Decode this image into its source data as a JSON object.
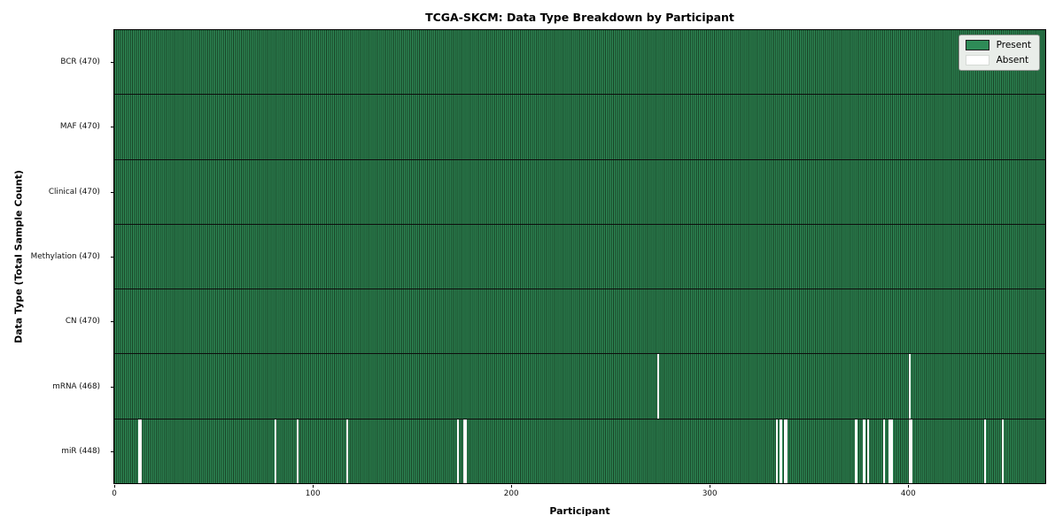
{
  "title": "TCGA-SKCM: Data Type Breakdown by Participant",
  "xlabel": "Participant",
  "ylabel": "Data Type (Total Sample Count)",
  "legend": {
    "present_label": "Present",
    "absent_label": "Absent"
  },
  "colors": {
    "present": "#2e8b57",
    "absent": "#ffffff",
    "bar_edge": "#16381f",
    "row_divider": "#0d0d0d",
    "legend_bg": "#e9ede9",
    "legend_border": "#8f948f"
  },
  "chart_data": {
    "type": "heatmap",
    "title": "TCGA-SKCM: Data Type Breakdown by Participant",
    "xlabel": "Participant",
    "ylabel": "Data Type (Total Sample Count)",
    "legend_entries": [
      "Present",
      "Absent"
    ],
    "legend_position": "upper right",
    "grid": false,
    "n_participants": 470,
    "x_axis": {
      "min": 0,
      "max": 470,
      "ticks": [
        0,
        100,
        200,
        300,
        400
      ]
    },
    "rows": [
      {
        "label": "BCR (470)",
        "data_type": "BCR",
        "present_count": 470,
        "absent_participants": []
      },
      {
        "label": "MAF (470)",
        "data_type": "MAF",
        "present_count": 470,
        "absent_participants": []
      },
      {
        "label": "Clinical (470)",
        "data_type": "Clinical",
        "present_count": 470,
        "absent_participants": []
      },
      {
        "label": "Methylation (470)",
        "data_type": "Methylation",
        "present_count": 470,
        "absent_participants": []
      },
      {
        "label": "CN (470)",
        "data_type": "CN",
        "present_count": 470,
        "absent_participants": []
      },
      {
        "label": "mRNA (468)",
        "data_type": "mRNA",
        "present_count": 468,
        "absent_participants": [
          274,
          401
        ]
      },
      {
        "label": "miR (448)",
        "data_type": "miR",
        "present_count": 448,
        "absent_participants": [
          12,
          13,
          81,
          92,
          117,
          173,
          176,
          177,
          334,
          336,
          338,
          339,
          374,
          378,
          380,
          388,
          391,
          392,
          401,
          402,
          439,
          448
        ]
      }
    ]
  }
}
